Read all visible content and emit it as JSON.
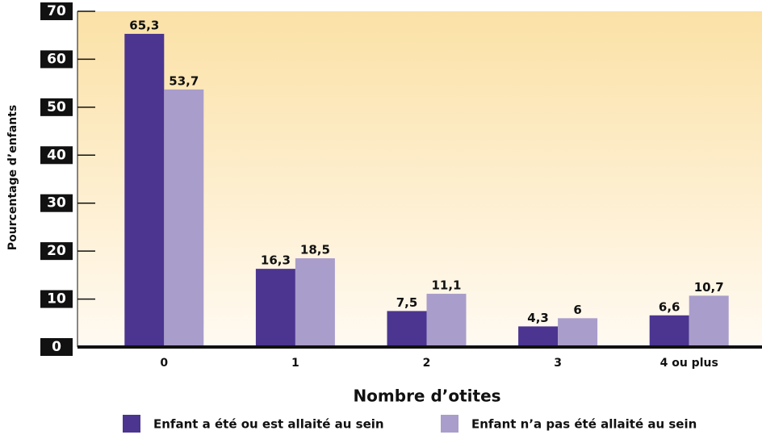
{
  "chart_data": {
    "type": "bar",
    "x_label": "Nombre d’otites",
    "y_label": "Pourcentage d’enfants",
    "categories": [
      "0",
      "1",
      "2",
      "3",
      "4 ou plus"
    ],
    "series": [
      {
        "name": "Enfant a été ou est allaité au sein",
        "color": "#4b3590",
        "values": [
          65.3,
          16.3,
          7.5,
          4.3,
          6.6
        ],
        "value_labels": [
          "65,3",
          "16,3",
          "7,5",
          "4,3",
          "6,6"
        ]
      },
      {
        "name": "Enfant n’a pas été allaité au sein",
        "color": "#a99dcb",
        "values": [
          53.7,
          18.5,
          11.1,
          6,
          10.7
        ],
        "value_labels": [
          "53,7",
          "18,5",
          "11,1",
          "6",
          "10,7"
        ]
      }
    ],
    "ylim": [
      0,
      70
    ],
    "yticks": [
      0,
      10,
      20,
      30,
      40,
      50,
      60,
      70
    ]
  }
}
